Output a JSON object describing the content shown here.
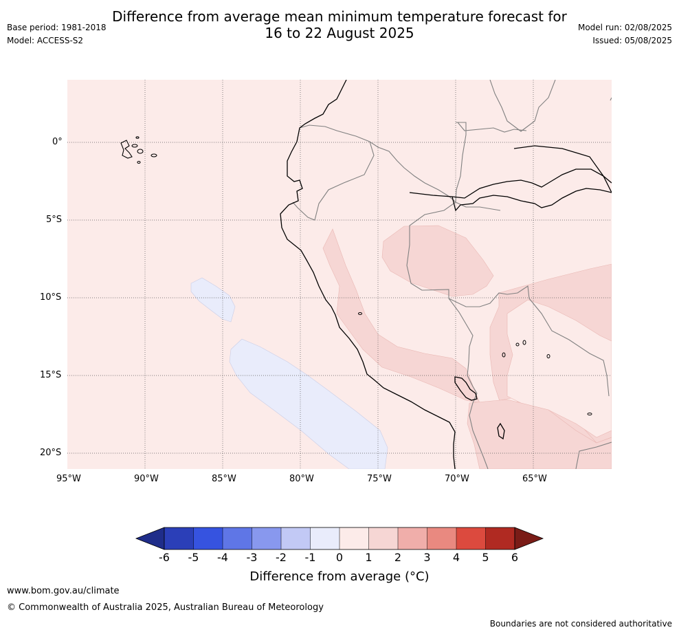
{
  "header": {
    "title_line1": "Difference from average mean minimum temperature forecast for",
    "title_line2": "16 to 22 August 2025",
    "base_period": "Base period: 1981-2018",
    "model": "Model: ACCESS-S2",
    "model_run": "Model run: 02/08/2025",
    "issued": "Issued: 05/08/2025"
  },
  "map": {
    "lat_labels": [
      "0°",
      "5°S",
      "10°S",
      "15°S",
      "20°S"
    ],
    "lon_labels": [
      "95°W",
      "90°W",
      "85°W",
      "80°W",
      "75°W",
      "70°W",
      "65°W"
    ],
    "colors": {
      "background": "#fcebe9",
      "warm_anomaly": "#f6d6d4",
      "cool_anomaly": "#e9ecfb",
      "coast": "#000000",
      "border": "#808080",
      "grid": "#555555"
    }
  },
  "colorbar": {
    "ticks": [
      "-6",
      "-5",
      "-4",
      "-3",
      "-2",
      "-1",
      "0",
      "1",
      "2",
      "3",
      "4",
      "5",
      "6"
    ],
    "colors": [
      "#1f2d8a",
      "#2b3fb8",
      "#3653e0",
      "#5f76e6",
      "#8898ee",
      "#c2c9f5",
      "#e9ecfb",
      "#fcebe9",
      "#f6d6d4",
      "#f0aeaa",
      "#e98980",
      "#dc4a3e",
      "#b02a22",
      "#7a1c17"
    ],
    "label": "Difference from average (°C)"
  },
  "footer": {
    "website": "www.bom.gov.au/climate",
    "copyright": "© Commonwealth of Australia 2025, Australian Bureau of Meteorology",
    "disclaimer": "Boundaries are not considered authoritative"
  }
}
